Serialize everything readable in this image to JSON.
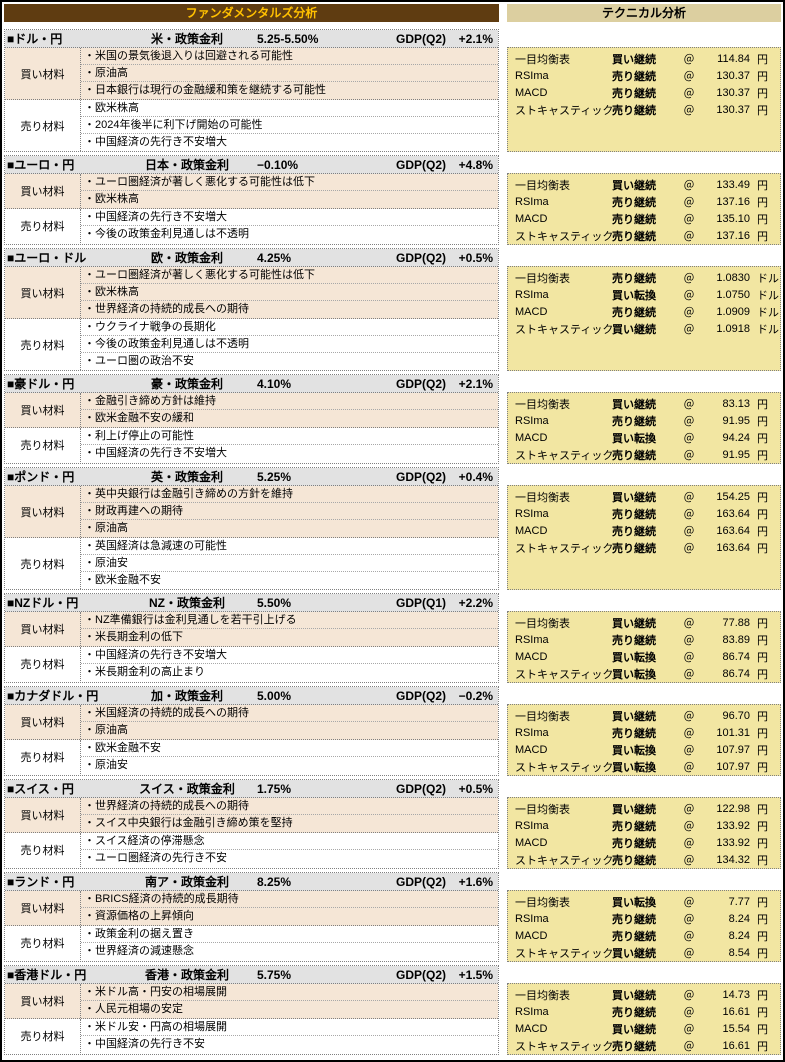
{
  "headers": {
    "fundamental": "ファンダメンタルズ分析",
    "technical": "テクニカル分析"
  },
  "labels": {
    "buy": "買い材料",
    "sell": "売り材料",
    "at": "＠"
  },
  "colors": {
    "fund_header_bg": "#5f3c11",
    "fund_header_text": "#ffc000",
    "tech_header_bg": "#dccfa0",
    "tech_panel_bg": "#f2e6a2",
    "section_header_bg": "#e2e2e2",
    "buy_bg": "#f5e6d6"
  },
  "sections": [
    {
      "pair": "■ドル・円",
      "rate_label": "米・政策金利",
      "rate_value": "5.25-5.50%",
      "gdp_label": "GDP(Q2)",
      "gdp_value": "+2.1%",
      "buy": [
        "・米国の景気後退入りは回避される可能性",
        "・原油高",
        "・日本銀行は現行の金融緩和策を継続する可能性"
      ],
      "sell": [
        "・欧米株高",
        "・2024年後半に利下げ開始の可能性",
        "・中国経済の先行き不安増大"
      ],
      "technical": [
        {
          "name": "一目均衡表",
          "signal": "買い継続",
          "value": "114.84",
          "unit": "円"
        },
        {
          "name": "RSIma",
          "signal": "売り継続",
          "value": "130.37",
          "unit": "円"
        },
        {
          "name": "MACD",
          "signal": "売り継続",
          "value": "130.37",
          "unit": "円"
        },
        {
          "name": "ストキャスティック",
          "signal": "売り継続",
          "value": "130.37",
          "unit": "円"
        }
      ]
    },
    {
      "pair": "■ユーロ・円",
      "rate_label": "日本・政策金利",
      "rate_value": "−0.10%",
      "gdp_label": "GDP(Q2)",
      "gdp_value": "+4.8%",
      "buy": [
        "・ユーロ圏経済が著しく悪化する可能性は低下",
        "・欧米株高"
      ],
      "sell": [
        "・中国経済の先行き不安増大",
        "・今後の政策金利見通しは不透明"
      ],
      "technical": [
        {
          "name": "一目均衡表",
          "signal": "買い継続",
          "value": "133.49",
          "unit": "円"
        },
        {
          "name": "RSIma",
          "signal": "売り継続",
          "value": "137.16",
          "unit": "円"
        },
        {
          "name": "MACD",
          "signal": "売り継続",
          "value": "135.10",
          "unit": "円"
        },
        {
          "name": "ストキャスティック",
          "signal": "売り継続",
          "value": "137.16",
          "unit": "円"
        }
      ]
    },
    {
      "pair": "■ユーロ・ドル",
      "rate_label": "欧・政策金利",
      "rate_value": "4.25%",
      "gdp_label": "GDP(Q2)",
      "gdp_value": "+0.5%",
      "buy": [
        "・ユーロ圏経済が著しく悪化する可能性は低下",
        "・欧米株高",
        "・世界経済の持続的成長への期待"
      ],
      "sell": [
        "・ウクライナ戦争の長期化",
        "・今後の政策金利見通しは不透明",
        "・ユーロ圏の政治不安"
      ],
      "technical": [
        {
          "name": "一目均衡表",
          "signal": "売り継続",
          "value": "1.0830",
          "unit": "ドル"
        },
        {
          "name": "RSIma",
          "signal": "買い転換",
          "value": "1.0750",
          "unit": "ドル"
        },
        {
          "name": "MACD",
          "signal": "売り継続",
          "value": "1.0909",
          "unit": "ドル"
        },
        {
          "name": "ストキャスティック",
          "signal": "買い継続",
          "value": "1.0918",
          "unit": "ドル"
        }
      ]
    },
    {
      "pair": "■豪ドル・円",
      "rate_label": "豪・政策金利",
      "rate_value": "4.10%",
      "gdp_label": "GDP(Q2)",
      "gdp_value": "+2.1%",
      "buy": [
        "・金融引き締め方針は維持",
        "・欧米金融不安の緩和"
      ],
      "sell": [
        "・利上げ停止の可能性",
        "・中国経済の先行き不安増大"
      ],
      "technical": [
        {
          "name": "一目均衡表",
          "signal": "買い継続",
          "value": "83.13",
          "unit": "円"
        },
        {
          "name": "RSIma",
          "signal": "売り継続",
          "value": "91.95",
          "unit": "円"
        },
        {
          "name": "MACD",
          "signal": "買い転換",
          "value": "94.24",
          "unit": "円"
        },
        {
          "name": "ストキャスティック",
          "signal": "売り継続",
          "value": "91.95",
          "unit": "円"
        }
      ]
    },
    {
      "pair": "■ポンド・円",
      "rate_label": "英・政策金利",
      "rate_value": "5.25%",
      "gdp_label": "GDP(Q2)",
      "gdp_value": "+0.4%",
      "buy": [
        "・英中央銀行は金融引き締めの方針を維持",
        "・財政再建への期待",
        "・原油高"
      ],
      "sell": [
        "・英国経済は急減速の可能性",
        "・原油安",
        "・欧米金融不安"
      ],
      "technical": [
        {
          "name": "一目均衡表",
          "signal": "買い継続",
          "value": "154.25",
          "unit": "円"
        },
        {
          "name": "RSIma",
          "signal": "売り継続",
          "value": "163.64",
          "unit": "円"
        },
        {
          "name": "MACD",
          "signal": "売り継続",
          "value": "163.64",
          "unit": "円"
        },
        {
          "name": "ストキャスティック",
          "signal": "売り継続",
          "value": "163.64",
          "unit": "円"
        }
      ]
    },
    {
      "pair": "■NZドル・円",
      "rate_label": "NZ・政策金利",
      "rate_value": "5.50%",
      "gdp_label": "GDP(Q1)",
      "gdp_value": "+2.2%",
      "buy": [
        "・NZ準備銀行は金利見通しを若干引上げる",
        "・米長期金利の低下"
      ],
      "sell": [
        "・中国経済の先行き不安増大",
        "・米長期金利の高止まり"
      ],
      "technical": [
        {
          "name": "一目均衡表",
          "signal": "買い継続",
          "value": "77.88",
          "unit": "円"
        },
        {
          "name": "RSIma",
          "signal": "売り継続",
          "value": "83.89",
          "unit": "円"
        },
        {
          "name": "MACD",
          "signal": "買い転換",
          "value": "86.74",
          "unit": "円"
        },
        {
          "name": "ストキャスティック",
          "signal": "買い転換",
          "value": "86.74",
          "unit": "円"
        }
      ]
    },
    {
      "pair": "■カナダドル・円",
      "rate_label": "加・政策金利",
      "rate_value": "5.00%",
      "gdp_label": "GDP(Q2)",
      "gdp_value": "−0.2%",
      "buy": [
        "・米国経済の持続的成長への期待",
        "・原油高"
      ],
      "sell": [
        "・欧米金融不安",
        "・原油安"
      ],
      "technical": [
        {
          "name": "一目均衡表",
          "signal": "買い継続",
          "value": "96.70",
          "unit": "円"
        },
        {
          "name": "RSIma",
          "signal": "売り継続",
          "value": "101.31",
          "unit": "円"
        },
        {
          "name": "MACD",
          "signal": "買い転換",
          "value": "107.97",
          "unit": "円"
        },
        {
          "name": "ストキャスティック",
          "signal": "買い転換",
          "value": "107.97",
          "unit": "円"
        }
      ]
    },
    {
      "pair": "■スイス・円",
      "rate_label": "スイス・政策金利",
      "rate_value": "1.75%",
      "gdp_label": "GDP(Q2)",
      "gdp_value": "+0.5%",
      "buy": [
        "・世界経済の持続的成長への期待",
        "・スイス中央銀行は金融引き締め策を堅持"
      ],
      "sell": [
        "・スイス経済の停滞懸念",
        "・ユーロ圏経済の先行き不安"
      ],
      "technical": [
        {
          "name": "一目均衡表",
          "signal": "買い継続",
          "value": "122.98",
          "unit": "円"
        },
        {
          "name": "RSIma",
          "signal": "売り継続",
          "value": "133.92",
          "unit": "円"
        },
        {
          "name": "MACD",
          "signal": "売り継続",
          "value": "133.92",
          "unit": "円"
        },
        {
          "name": "ストキャスティック",
          "signal": "売り継続",
          "value": "134.32",
          "unit": "円"
        }
      ]
    },
    {
      "pair": "■ランド・円",
      "rate_label": "南ア・政策金利",
      "rate_value": "8.25%",
      "gdp_label": "GDP(Q2)",
      "gdp_value": "+1.6%",
      "buy": [
        "・BRICS経済の持続的成長期待",
        "・資源価格の上昇傾向"
      ],
      "sell": [
        "・政策金利の据え置き",
        "・世界経済の減速懸念"
      ],
      "technical": [
        {
          "name": "一目均衡表",
          "signal": "買い転換",
          "value": "7.77",
          "unit": "円"
        },
        {
          "name": "RSIma",
          "signal": "売り継続",
          "value": "8.24",
          "unit": "円"
        },
        {
          "name": "MACD",
          "signal": "売り継続",
          "value": "8.24",
          "unit": "円"
        },
        {
          "name": "ストキャスティック",
          "signal": "買い継続",
          "value": "8.54",
          "unit": "円"
        }
      ]
    },
    {
      "pair": "■香港ドル・円",
      "rate_label": "香港・政策金利",
      "rate_value": "5.75%",
      "gdp_label": "GDP(Q2)",
      "gdp_value": "+1.5%",
      "buy": [
        "・米ドル高・円安の相場展開",
        "・人民元相場の安定"
      ],
      "sell": [
        "・米ドル安・円高の相場展開",
        "・中国経済の先行き不安"
      ],
      "technical": [
        {
          "name": "一目均衡表",
          "signal": "買い継続",
          "value": "14.73",
          "unit": "円"
        },
        {
          "name": "RSIma",
          "signal": "売り継続",
          "value": "16.61",
          "unit": "円"
        },
        {
          "name": "MACD",
          "signal": "買い継続",
          "value": "15.54",
          "unit": "円"
        },
        {
          "name": "ストキャスティック",
          "signal": "売り継続",
          "value": "16.61",
          "unit": "円"
        }
      ]
    }
  ]
}
